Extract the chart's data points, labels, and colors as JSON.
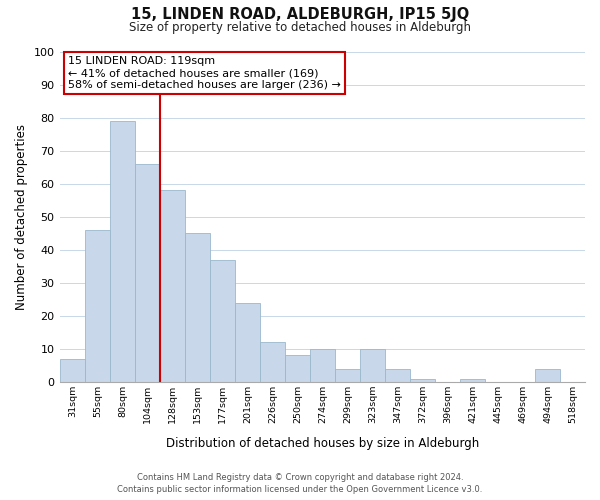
{
  "title": "15, LINDEN ROAD, ALDEBURGH, IP15 5JQ",
  "subtitle": "Size of property relative to detached houses in Aldeburgh",
  "xlabel": "Distribution of detached houses by size in Aldeburgh",
  "ylabel": "Number of detached properties",
  "bar_labels": [
    "31sqm",
    "55sqm",
    "80sqm",
    "104sqm",
    "128sqm",
    "153sqm",
    "177sqm",
    "201sqm",
    "226sqm",
    "250sqm",
    "274sqm",
    "299sqm",
    "323sqm",
    "347sqm",
    "372sqm",
    "396sqm",
    "421sqm",
    "445sqm",
    "469sqm",
    "494sqm",
    "518sqm"
  ],
  "bar_values": [
    7,
    46,
    79,
    66,
    58,
    45,
    37,
    24,
    12,
    8,
    10,
    4,
    10,
    4,
    1,
    0,
    1,
    0,
    0,
    4,
    0
  ],
  "bar_color": "#c8d8ea",
  "bar_edge_color": "#9ab8cc",
  "vline_color": "#cc0000",
  "annotation_title": "15 LINDEN ROAD: 119sqm",
  "annotation_line1": "← 41% of detached houses are smaller (169)",
  "annotation_line2": "58% of semi-detached houses are larger (236) →",
  "annotation_box_color": "#ffffff",
  "annotation_box_edge": "#cc0000",
  "ylim": [
    0,
    100
  ],
  "yticks": [
    0,
    10,
    20,
    30,
    40,
    50,
    60,
    70,
    80,
    90,
    100
  ],
  "footer1": "Contains HM Land Registry data © Crown copyright and database right 2024.",
  "footer2": "Contains public sector information licensed under the Open Government Licence v3.0.",
  "bg_color": "#ffffff",
  "grid_color": "#c8d8e8"
}
